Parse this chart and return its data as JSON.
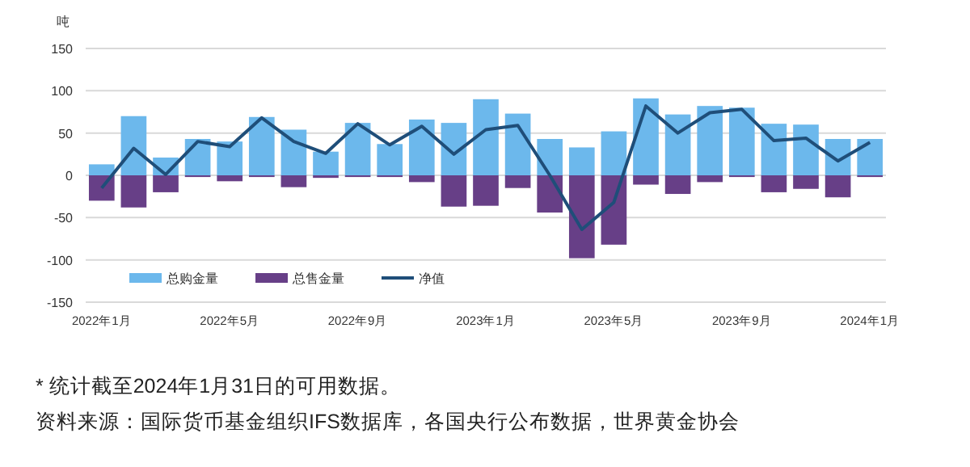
{
  "chart_data": {
    "type": "bar",
    "ylabel": "吨",
    "categories": [
      "2022年1月",
      null,
      null,
      null,
      "2022年5月",
      null,
      null,
      null,
      "2022年9月",
      null,
      null,
      null,
      "2023年1月",
      null,
      null,
      null,
      "2023年5月",
      null,
      null,
      null,
      "2023年9月",
      null,
      null,
      null,
      "2024年1月"
    ],
    "series": [
      {
        "name": "总购金量",
        "color": "#6cb8ec",
        "values": [
          13,
          70,
          21,
          43,
          40,
          69,
          54,
          28,
          62,
          37,
          66,
          62,
          90,
          73,
          43,
          33,
          52,
          91,
          72,
          82,
          80,
          61,
          60,
          43,
          43
        ]
      },
      {
        "name": "总售金量",
        "color": "#673f87",
        "values": [
          -30,
          -38,
          -20,
          -2,
          -7,
          -2,
          -14,
          -3,
          -2,
          -2,
          -8,
          -37,
          -36,
          -15,
          -44,
          -98,
          -82,
          -11,
          -22,
          -8,
          -2,
          -20,
          -16,
          -26,
          -2
        ]
      },
      {
        "name": "净值",
        "type": "line",
        "color": "#1f4e79",
        "values": [
          -15,
          32,
          1,
          40,
          34,
          68,
          40,
          26,
          61,
          36,
          58,
          25,
          54,
          59,
          0,
          -64,
          -32,
          82,
          50,
          74,
          78,
          41,
          44,
          17,
          39
        ]
      }
    ],
    "stacked": true,
    "ylim": [
      -150,
      150
    ],
    "yticks": [
      -150,
      -100,
      -50,
      0,
      50,
      100,
      150
    ],
    "grid": "y",
    "legend": "bottom",
    "marker": "none",
    "line_style": "solid",
    "annotations": [
      "* 统计截至2024年1月31日的可用数据。",
      "资料来源：国际货币基金组织IFS数据库，各国央行公布数据，世界黄金协会"
    ]
  }
}
